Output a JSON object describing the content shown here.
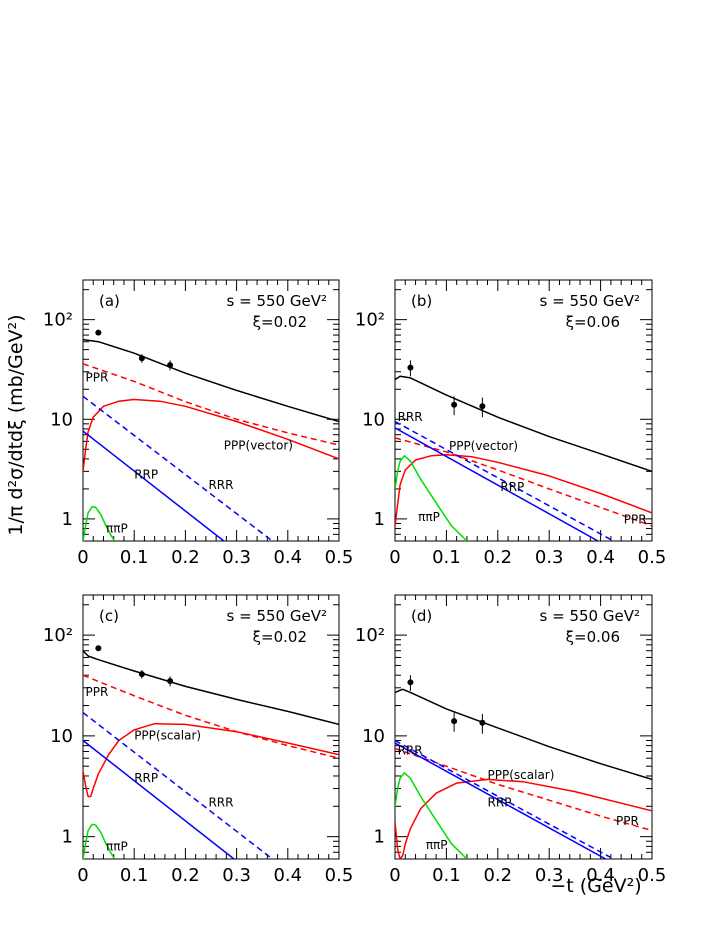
{
  "figure": {
    "y_axis_title": "1/π   d²σ/dtdξ   (mb/GeV²)",
    "x_axis_title": "−t   (GeV²)",
    "colors": {
      "total": "#000000",
      "red": "#ff0000",
      "blue": "#0000ff",
      "green": "#00dd00"
    }
  },
  "chart_data": [
    {
      "type": "line",
      "panel": "(a)",
      "energy": "s = 550 GeV²",
      "xi": "ξ=0.02",
      "xlim": [
        0,
        0.5
      ],
      "ylim": [
        0.6,
        250
      ],
      "yscale": "log",
      "x_ticks": [
        "0",
        "0.1",
        "0.2",
        "0.3",
        "0.4",
        "0.5"
      ],
      "y_ticks": [
        {
          "value": 1,
          "label": "1"
        },
        {
          "value": 10,
          "label": "10"
        },
        {
          "value": 100,
          "label": "10²"
        }
      ],
      "points": [
        {
          "x": 0.03,
          "y": 74,
          "err": 4
        },
        {
          "x": 0.115,
          "y": 41,
          "err": 4
        },
        {
          "x": 0.17,
          "y": 35,
          "err": 4
        }
      ],
      "series": [
        {
          "name": "total",
          "color": "#000000",
          "dash": false,
          "x": [
            0,
            0.03,
            0.1,
            0.2,
            0.3,
            0.4,
            0.5
          ],
          "y": [
            63,
            60,
            46,
            29,
            19.5,
            13.5,
            9.5
          ]
        },
        {
          "name": "PPR",
          "color": "#ff0000",
          "dash": true,
          "x": [
            0,
            0.1,
            0.2,
            0.3,
            0.4,
            0.5
          ],
          "y": [
            36,
            24,
            15,
            10,
            7.3,
            5.5
          ]
        },
        {
          "name": "PPP(vector)",
          "color": "#ff0000",
          "dash": false,
          "x": [
            0,
            0.005,
            0.01,
            0.02,
            0.04,
            0.07,
            0.1,
            0.15,
            0.2,
            0.3,
            0.4,
            0.5
          ],
          "y": [
            3.0,
            5.0,
            7.5,
            10.5,
            13.5,
            15.2,
            15.8,
            15.2,
            13.5,
            9.5,
            6.3,
            4.0
          ]
        },
        {
          "name": "RRR",
          "color": "#0000ff",
          "dash": true,
          "x": [
            0,
            0.37
          ],
          "y": [
            17,
            0.6
          ]
        },
        {
          "name": "RRP",
          "color": "#0000ff",
          "dash": false,
          "x": [
            0,
            0.275
          ],
          "y": [
            7.6,
            0.6
          ]
        },
        {
          "name": "ππP",
          "color": "#00dd00",
          "dash": false,
          "x": [
            0,
            0.005,
            0.01,
            0.018,
            0.025,
            0.035,
            0.045,
            0.055,
            0.062
          ],
          "y": [
            0.6,
            0.85,
            1.15,
            1.33,
            1.3,
            1.1,
            0.85,
            0.68,
            0.6
          ]
        }
      ],
      "labels": [
        {
          "text": "PPR",
          "x": 0.005,
          "y": 24
        },
        {
          "text": "PPP(vector)",
          "x": 0.275,
          "y": 5.0
        },
        {
          "text": "RRP",
          "x": 0.1,
          "y": 2.55
        },
        {
          "text": "RRR",
          "x": 0.245,
          "y": 2.0
        },
        {
          "text": "ππP",
          "x": 0.045,
          "y": 0.73
        }
      ]
    },
    {
      "type": "line",
      "panel": "(b)",
      "energy": "s = 550 GeV²",
      "xi": "ξ=0.06",
      "xlim": [
        0,
        0.5
      ],
      "ylim": [
        0.6,
        250
      ],
      "yscale": "log",
      "x_ticks": [
        "0",
        "0.1",
        "0.2",
        "0.3",
        "0.4",
        "0.5"
      ],
      "y_ticks": [
        {
          "value": 1,
          "label": "1"
        },
        {
          "value": 10,
          "label": "10"
        },
        {
          "value": 100,
          "label": "10²"
        }
      ],
      "points": [
        {
          "x": 0.03,
          "y": 33,
          "err": 6
        },
        {
          "x": 0.115,
          "y": 14,
          "err": 3
        },
        {
          "x": 0.17,
          "y": 13.5,
          "err": 3
        }
      ],
      "series": [
        {
          "name": "total",
          "color": "#000000",
          "dash": false,
          "x": [
            0,
            0.01,
            0.03,
            0.1,
            0.2,
            0.3,
            0.4,
            0.5
          ],
          "y": [
            25,
            27,
            26,
            17.5,
            10.5,
            6.7,
            4.5,
            3.0
          ]
        },
        {
          "name": "PPR",
          "color": "#ff0000",
          "dash": true,
          "x": [
            0,
            0.1,
            0.2,
            0.3,
            0.4,
            0.5
          ],
          "y": [
            6.5,
            4.7,
            3.1,
            2.0,
            1.3,
            0.85
          ]
        },
        {
          "name": "PPP(vector)",
          "color": "#ff0000",
          "dash": false,
          "x": [
            0,
            0.01,
            0.02,
            0.04,
            0.07,
            0.1,
            0.15,
            0.2,
            0.3,
            0.4,
            0.5
          ],
          "y": [
            0.85,
            2.2,
            3.1,
            3.9,
            4.3,
            4.4,
            4.2,
            3.7,
            2.7,
            1.8,
            1.15
          ]
        },
        {
          "name": "RRR",
          "color": "#0000ff",
          "dash": true,
          "x": [
            0,
            0.425
          ],
          "y": [
            9.5,
            0.6
          ]
        },
        {
          "name": "RRP",
          "color": "#0000ff",
          "dash": false,
          "x": [
            0,
            0.395
          ],
          "y": [
            8.2,
            0.6
          ]
        },
        {
          "name": "ππP",
          "color": "#00dd00",
          "dash": false,
          "x": [
            0,
            0.005,
            0.01,
            0.018,
            0.03,
            0.05,
            0.08,
            0.11,
            0.14
          ],
          "y": [
            2.0,
            3.0,
            3.8,
            4.3,
            3.8,
            2.5,
            1.45,
            0.85,
            0.6
          ]
        }
      ],
      "labels": [
        {
          "text": "RRR",
          "x": 0.005,
          "y": 9.6
        },
        {
          "text": "PPP(vector)",
          "x": 0.105,
          "y": 4.9
        },
        {
          "text": "RRP",
          "x": 0.205,
          "y": 1.9
        },
        {
          "text": "PPR",
          "x": 0.445,
          "y": 0.9
        },
        {
          "text": "ππP",
          "x": 0.045,
          "y": 0.95
        }
      ]
    },
    {
      "type": "line",
      "panel": "(c)",
      "energy": "s = 550 GeV²",
      "xi": "ξ=0.02",
      "xlim": [
        0,
        0.5
      ],
      "ylim": [
        0.6,
        250
      ],
      "yscale": "log",
      "x_ticks": [
        "0",
        "0.1",
        "0.2",
        "0.3",
        "0.4",
        "0.5"
      ],
      "y_ticks": [
        {
          "value": 1,
          "label": "1"
        },
        {
          "value": 10,
          "label": "10"
        },
        {
          "value": 100,
          "label": "10²"
        }
      ],
      "points": [
        {
          "x": 0.03,
          "y": 74,
          "err": 4
        },
        {
          "x": 0.115,
          "y": 41,
          "err": 4
        },
        {
          "x": 0.17,
          "y": 35,
          "err": 4
        }
      ],
      "series": [
        {
          "name": "total",
          "color": "#000000",
          "dash": false,
          "x": [
            0,
            0.01,
            0.03,
            0.1,
            0.2,
            0.3,
            0.4,
            0.5
          ],
          "y": [
            70,
            62,
            57,
            44,
            31,
            23,
            17.5,
            13
          ]
        },
        {
          "name": "PPR",
          "color": "#ff0000",
          "dash": true,
          "x": [
            0,
            0.1,
            0.2,
            0.3,
            0.4,
            0.5
          ],
          "y": [
            40,
            25,
            16,
            11,
            8.0,
            6.0
          ]
        },
        {
          "name": "PPP(scalar)",
          "color": "#ff0000",
          "dash": false,
          "x": [
            0,
            0.005,
            0.01,
            0.015,
            0.02,
            0.03,
            0.05,
            0.07,
            0.1,
            0.14,
            0.2,
            0.3,
            0.4,
            0.5
          ],
          "y": [
            4.5,
            3.2,
            2.5,
            2.5,
            3.0,
            4.2,
            6.5,
            9.0,
            11.5,
            13.2,
            13.0,
            11.0,
            8.5,
            6.5
          ]
        },
        {
          "name": "RRR",
          "color": "#0000ff",
          "dash": true,
          "x": [
            0,
            0.37
          ],
          "y": [
            17,
            0.6
          ]
        },
        {
          "name": "RRP",
          "color": "#0000ff",
          "dash": false,
          "x": [
            0,
            0.295
          ],
          "y": [
            9.0,
            0.6
          ]
        },
        {
          "name": "ππP",
          "color": "#00dd00",
          "dash": false,
          "x": [
            0,
            0.005,
            0.01,
            0.018,
            0.025,
            0.035,
            0.045,
            0.055,
            0.062
          ],
          "y": [
            0.6,
            0.85,
            1.15,
            1.33,
            1.3,
            1.1,
            0.85,
            0.68,
            0.6
          ]
        }
      ],
      "labels": [
        {
          "text": "PPR",
          "x": 0.005,
          "y": 25
        },
        {
          "text": "PPP(scalar)",
          "x": 0.1,
          "y": 9.2
        },
        {
          "text": "RRP",
          "x": 0.1,
          "y": 3.5
        },
        {
          "text": "RRR",
          "x": 0.245,
          "y": 2.0
        },
        {
          "text": "ππP",
          "x": 0.045,
          "y": 0.73
        }
      ]
    },
    {
      "type": "line",
      "panel": "(d)",
      "energy": "s = 550 GeV²",
      "xi": "ξ=0.06",
      "xlim": [
        0,
        0.5
      ],
      "ylim": [
        0.6,
        250
      ],
      "yscale": "log",
      "x_ticks": [
        "0",
        "0.1",
        "0.2",
        "0.3",
        "0.4",
        "0.5"
      ],
      "y_ticks": [
        {
          "value": 1,
          "label": "1"
        },
        {
          "value": 10,
          "label": "10"
        },
        {
          "value": 100,
          "label": "10²"
        }
      ],
      "points": [
        {
          "x": 0.03,
          "y": 34,
          "err": 6
        },
        {
          "x": 0.115,
          "y": 14,
          "err": 3
        },
        {
          "x": 0.17,
          "y": 13.5,
          "err": 3
        }
      ],
      "series": [
        {
          "name": "total",
          "color": "#000000",
          "dash": false,
          "x": [
            0,
            0.015,
            0.03,
            0.1,
            0.2,
            0.3,
            0.4,
            0.5
          ],
          "y": [
            27,
            29,
            27,
            18.5,
            12,
            7.8,
            5.3,
            3.7
          ]
        },
        {
          "name": "PPR",
          "color": "#ff0000",
          "dash": true,
          "x": [
            0,
            0.1,
            0.2,
            0.3,
            0.4,
            0.5
          ],
          "y": [
            7.5,
            5.0,
            3.3,
            2.3,
            1.6,
            1.15
          ]
        },
        {
          "name": "PPP(scalar)",
          "color": "#ff0000",
          "dash": false,
          "x": [
            0,
            0.005,
            0.01,
            0.015,
            0.02,
            0.03,
            0.05,
            0.08,
            0.12,
            0.18,
            0.25,
            0.35,
            0.5
          ],
          "y": [
            1.4,
            0.75,
            0.6,
            0.65,
            0.85,
            1.2,
            1.9,
            2.7,
            3.4,
            3.7,
            3.5,
            2.8,
            1.8
          ]
        },
        {
          "name": "RRR",
          "color": "#0000ff",
          "dash": true,
          "x": [
            0,
            0.425
          ],
          "y": [
            9.0,
            0.6
          ]
        },
        {
          "name": "RRP",
          "color": "#0000ff",
          "dash": false,
          "x": [
            0,
            0.41
          ],
          "y": [
            8.5,
            0.6
          ]
        },
        {
          "name": "ππP",
          "color": "#00dd00",
          "dash": false,
          "x": [
            0,
            0.005,
            0.01,
            0.018,
            0.03,
            0.05,
            0.08,
            0.11,
            0.14
          ],
          "y": [
            2.0,
            3.0,
            3.8,
            4.3,
            3.8,
            2.5,
            1.45,
            0.85,
            0.6
          ]
        }
      ],
      "labels": [
        {
          "text": "RRR",
          "x": 0.005,
          "y": 6.5
        },
        {
          "text": "PPP(scalar)",
          "x": 0.18,
          "y": 3.75
        },
        {
          "text": "RRP",
          "x": 0.18,
          "y": 2.0
        },
        {
          "text": "PPR",
          "x": 0.43,
          "y": 1.3
        },
        {
          "text": "ππP",
          "x": 0.06,
          "y": 0.75
        }
      ]
    }
  ]
}
